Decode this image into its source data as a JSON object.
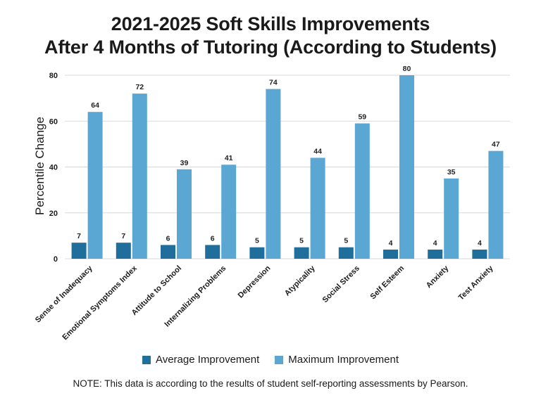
{
  "chart_data": {
    "type": "bar",
    "title_lines": [
      "2021-2025 Soft Skills Improvements",
      "After 4 Months of Tutoring (According to Students)"
    ],
    "ylabel": "Percentile Change",
    "xlabel": "",
    "ylim": [
      0,
      80
    ],
    "yticks": [
      0,
      20,
      40,
      60,
      80
    ],
    "grid": true,
    "legend_position": "bottom",
    "categories": [
      "Sense of Inadequacy",
      "Emotional Symptoms Index",
      "Attitude to School",
      "Internalizing Problems",
      "Depression",
      "Atypicality",
      "Social Stress",
      "Self Esteem",
      "Anxiety",
      "Test Anxiety"
    ],
    "series": [
      {
        "name": "Average Improvement",
        "color": "#1f6e9c",
        "values": [
          7,
          7,
          6,
          6,
          5,
          5,
          5,
          4,
          4,
          4
        ]
      },
      {
        "name": "Maximum Improvement",
        "color": "#5aa7d3",
        "values": [
          64,
          72,
          39,
          41,
          74,
          44,
          59,
          80,
          35,
          47
        ]
      }
    ]
  },
  "note": "NOTE: This data is according to the results of student self-reporting assessments by Pearson."
}
